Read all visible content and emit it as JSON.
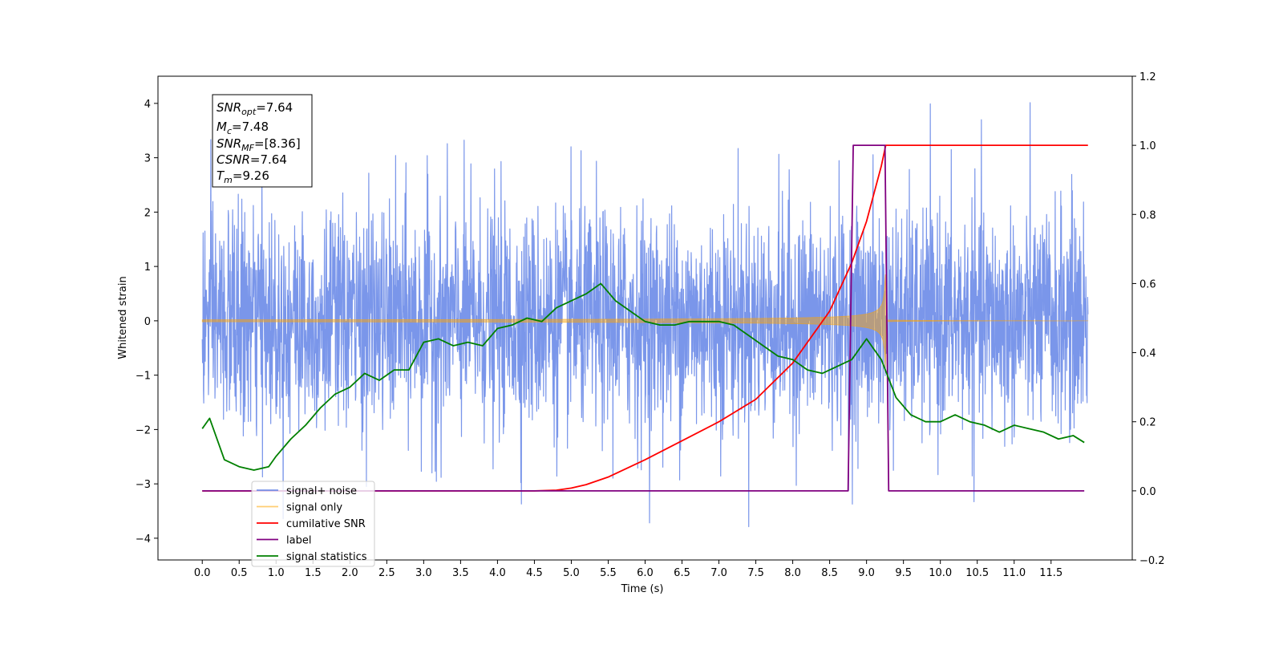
{
  "chart_data": {
    "type": "line",
    "xlabel": "Time (s)",
    "ylabel": "Whitened strain",
    "xlim": [
      -0.6,
      12.6
    ],
    "ylim": [
      -4.4,
      4.5
    ],
    "y2lim": [
      -0.2,
      1.2
    ],
    "xticks": [
      "0.0",
      "0.5",
      "1.0",
      "1.5",
      "2.0",
      "2.5",
      "3.0",
      "3.5",
      "4.0",
      "4.5",
      "5.0",
      "5.5",
      "6.0",
      "6.5",
      "7.0",
      "7.5",
      "8.0",
      "8.5",
      "9.0",
      "9.5",
      "10.0",
      "10.5",
      "11.0",
      "11.5"
    ],
    "yticks": [
      "4",
      "3",
      "2",
      "1",
      "0",
      "−1",
      "−2",
      "−3",
      "−4"
    ],
    "y2ticks": [
      "1.2",
      "1.0",
      "0.8",
      "0.6",
      "0.4",
      "0.2",
      "0.0",
      "−0.2"
    ],
    "grid": false,
    "legend_position": "lower-left",
    "annotation": {
      "lines": [
        {
          "main": "SNR",
          "sub": "opt",
          "value": "=7.64"
        },
        {
          "main": "M",
          "sub": "c",
          "value": "=7.48"
        },
        {
          "main": "SNR",
          "sub": "MF",
          "value": "=[8.36]"
        },
        {
          "main": "CSNR",
          "sub": "",
          "value": "=7.64"
        },
        {
          "main": "T",
          "sub": "m",
          "value": "=9.26"
        }
      ]
    },
    "series": [
      {
        "name": "signal+ noise",
        "color": "#4169e1",
        "axis": "left",
        "kind": "noise",
        "t_start": 0.0,
        "t_end": 12.0,
        "std": 1.0
      },
      {
        "name": "signal only",
        "color": "#ffa500",
        "axis": "left",
        "kind": "chirp",
        "t_start": 0.0,
        "t_merge": 9.26,
        "t_end": 12.0
      },
      {
        "name": "cumilative SNR",
        "color": "#ff0000",
        "axis": "right",
        "x": [
          0.0,
          4.5,
          4.8,
          5.0,
          5.2,
          5.5,
          6.0,
          6.5,
          7.0,
          7.5,
          8.0,
          8.5,
          8.8,
          9.0,
          9.1,
          9.2,
          9.24,
          9.26,
          12.0
        ],
        "y": [
          0.0,
          0.0,
          0.002,
          0.008,
          0.018,
          0.04,
          0.09,
          0.145,
          0.2,
          0.265,
          0.37,
          0.52,
          0.66,
          0.78,
          0.86,
          0.94,
          0.98,
          1.0,
          1.0
        ]
      },
      {
        "name": "label",
        "color": "#800080",
        "axis": "right",
        "x": [
          0.0,
          8.75,
          8.82,
          9.25,
          9.3,
          11.95
        ],
        "y": [
          0.0,
          0.0,
          1.0,
          1.0,
          0.0,
          0.0
        ]
      },
      {
        "name": "signal statistics",
        "color": "#008000",
        "axis": "right",
        "x": [
          0.0,
          0.1,
          0.3,
          0.5,
          0.7,
          0.9,
          1.0,
          1.2,
          1.4,
          1.6,
          1.8,
          2.0,
          2.2,
          2.4,
          2.6,
          2.8,
          3.0,
          3.2,
          3.4,
          3.6,
          3.8,
          4.0,
          4.2,
          4.4,
          4.6,
          4.8,
          5.0,
          5.2,
          5.4,
          5.6,
          5.8,
          6.0,
          6.2,
          6.4,
          6.6,
          6.8,
          7.0,
          7.2,
          7.4,
          7.6,
          7.8,
          8.0,
          8.2,
          8.4,
          8.6,
          8.8,
          9.0,
          9.2,
          9.4,
          9.6,
          9.8,
          10.0,
          10.2,
          10.4,
          10.6,
          10.8,
          11.0,
          11.2,
          11.4,
          11.6,
          11.8,
          11.95
        ],
        "y": [
          0.18,
          0.21,
          0.09,
          0.07,
          0.06,
          0.07,
          0.1,
          0.15,
          0.19,
          0.24,
          0.28,
          0.3,
          0.34,
          0.32,
          0.35,
          0.35,
          0.43,
          0.44,
          0.42,
          0.43,
          0.42,
          0.47,
          0.48,
          0.5,
          0.49,
          0.53,
          0.55,
          0.57,
          0.6,
          0.55,
          0.52,
          0.49,
          0.48,
          0.48,
          0.49,
          0.49,
          0.49,
          0.48,
          0.45,
          0.42,
          0.39,
          0.38,
          0.35,
          0.34,
          0.36,
          0.38,
          0.44,
          0.38,
          0.27,
          0.22,
          0.2,
          0.2,
          0.22,
          0.2,
          0.19,
          0.17,
          0.19,
          0.18,
          0.17,
          0.15,
          0.16,
          0.14
        ]
      }
    ]
  }
}
